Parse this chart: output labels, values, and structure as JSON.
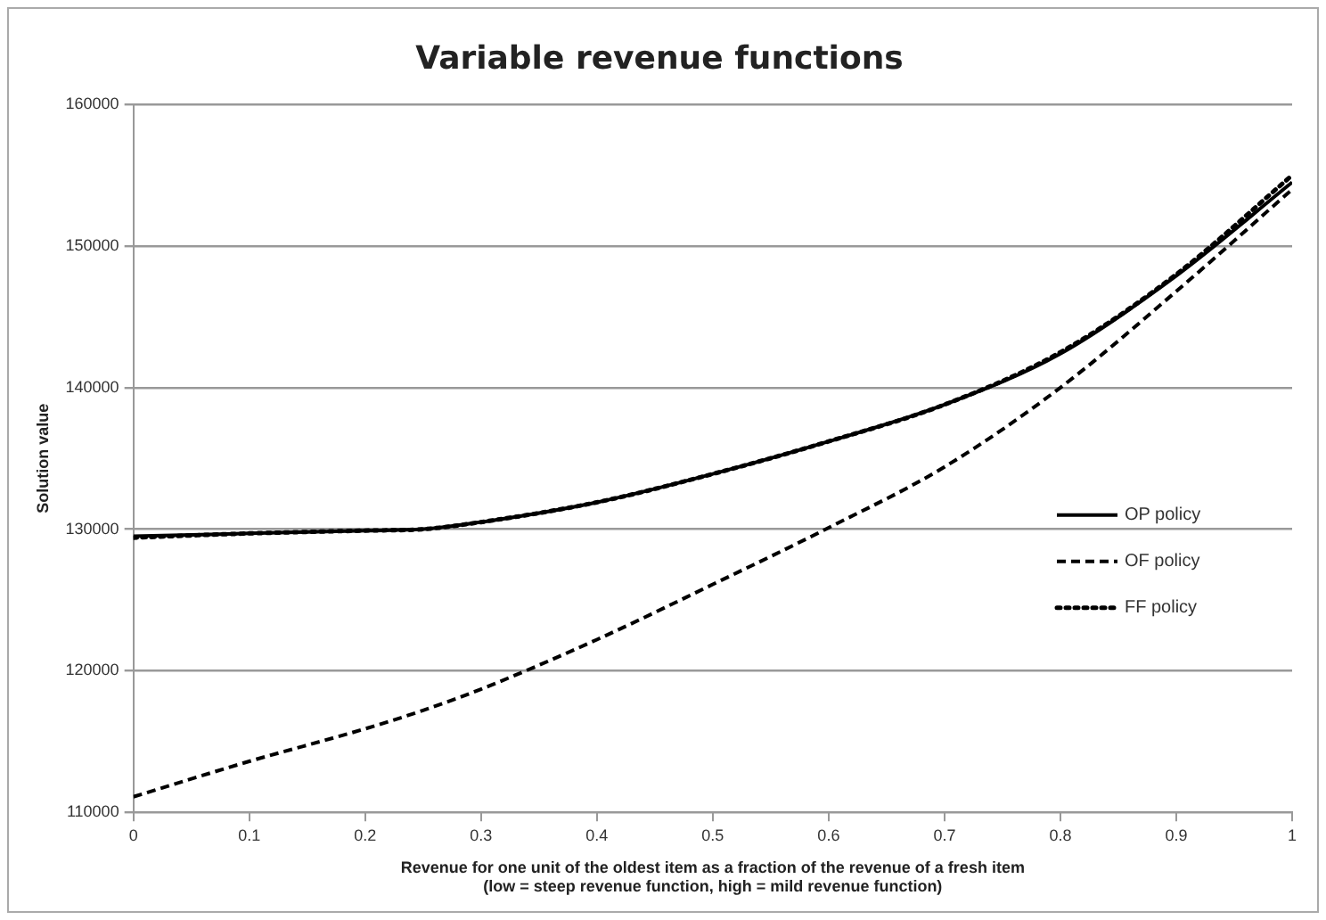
{
  "chart_data": {
    "type": "line",
    "title": "Variable revenue functions",
    "xlabel": "Revenue for one unit of the oldest item as a fraction of the revenue of a fresh item\n(low = steep revenue function, high = mild revenue function)",
    "ylabel": "Solution value",
    "x": [
      0,
      0.1,
      0.2,
      0.25,
      0.3,
      0.4,
      0.5,
      0.6,
      0.7,
      0.8,
      0.9,
      1
    ],
    "series": [
      {
        "name": "OP policy",
        "color": "#000000",
        "line_style": "solid",
        "values": [
          129500,
          129700,
          129900,
          130000,
          130500,
          131900,
          133900,
          136200,
          138800,
          142400,
          147900,
          154500
        ]
      },
      {
        "name": "OF policy",
        "color": "#000000",
        "line_style": "dashed",
        "values": [
          111100,
          113600,
          115900,
          117200,
          118700,
          122200,
          126100,
          130100,
          134400,
          140000,
          146800,
          154000
        ]
      },
      {
        "name": "FF policy",
        "color": "#000000",
        "line_style": "dotted",
        "values": [
          129400,
          129700,
          129900,
          130000,
          130500,
          131900,
          133900,
          136200,
          138800,
          142500,
          148000,
          155000
        ]
      }
    ],
    "xlim": [
      0,
      1
    ],
    "xticks": [
      0,
      0.1,
      0.2,
      0.3,
      0.4,
      0.5,
      0.6,
      0.7,
      0.8,
      0.9,
      1
    ],
    "ylim": [
      110000,
      160000
    ],
    "yticks": [
      110000,
      120000,
      130000,
      140000,
      150000,
      160000
    ],
    "grid": "y",
    "legend": "right",
    "marker": "none"
  }
}
